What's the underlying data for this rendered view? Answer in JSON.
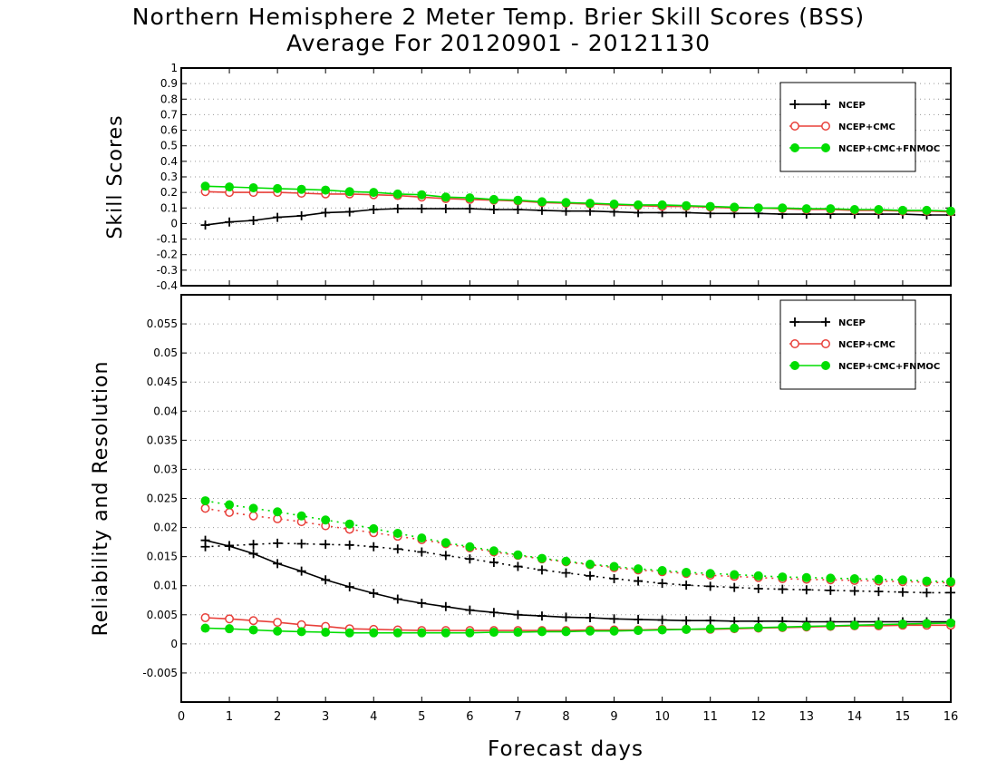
{
  "title": {
    "line1": "Northern Hemisphere 2 Meter Temp. Brier Skill Scores (BSS)",
    "line2": "Average For 20120901 - 20121130"
  },
  "xlabel": "Forecast days",
  "x_ticks": [
    "0",
    "1",
    "2",
    "3",
    "4",
    "5",
    "6",
    "7",
    "8",
    "9",
    "10",
    "11",
    "12",
    "13",
    "14",
    "15",
    "16"
  ],
  "colors": {
    "NCEP": "#000000",
    "NCEP+CMC": "#e8403a",
    "NCEP+CMC+FNMOC": "#00dd00"
  },
  "chart_data": [
    {
      "type": "line",
      "ylabel": "Skill Scores",
      "xlim": [
        0,
        16
      ],
      "ylim": [
        -0.4,
        1.0
      ],
      "y_ticks": [
        "-0.4",
        "-0.3",
        "-0.2",
        "-0.1",
        "0",
        "0.1",
        "0.2",
        "0.3",
        "0.4",
        "0.5",
        "0.6",
        "0.7",
        "0.8",
        "0.9",
        "1"
      ],
      "grid": true,
      "legend_position": "top-right",
      "x": [
        0.5,
        1,
        1.5,
        2,
        2.5,
        3,
        3.5,
        4,
        4.5,
        5,
        5.5,
        6,
        6.5,
        7,
        7.5,
        8,
        8.5,
        9,
        9.5,
        10,
        10.5,
        11,
        11.5,
        12,
        12.5,
        13,
        13.5,
        14,
        14.5,
        15,
        15.5,
        16
      ],
      "series": [
        {
          "name": "NCEP",
          "marker": "plus",
          "line": "solid",
          "values": [
            -0.01,
            0.01,
            0.02,
            0.04,
            0.05,
            0.07,
            0.075,
            0.09,
            0.095,
            0.095,
            0.095,
            0.095,
            0.09,
            0.09,
            0.085,
            0.08,
            0.08,
            0.075,
            0.07,
            0.07,
            0.07,
            0.065,
            0.065,
            0.065,
            0.06,
            0.06,
            0.06,
            0.06,
            0.06,
            0.06,
            0.055,
            0.055
          ]
        },
        {
          "name": "NCEP+CMC",
          "marker": "open-circle",
          "line": "solid",
          "values": [
            0.205,
            0.2,
            0.2,
            0.2,
            0.195,
            0.19,
            0.19,
            0.185,
            0.18,
            0.17,
            0.16,
            0.155,
            0.15,
            0.145,
            0.135,
            0.13,
            0.125,
            0.12,
            0.115,
            0.11,
            0.11,
            0.105,
            0.1,
            0.1,
            0.095,
            0.09,
            0.09,
            0.085,
            0.085,
            0.08,
            0.08,
            0.075
          ]
        },
        {
          "name": "NCEP+CMC+FNMOC",
          "marker": "filled-circle",
          "line": "solid",
          "values": [
            0.24,
            0.235,
            0.23,
            0.225,
            0.22,
            0.215,
            0.205,
            0.2,
            0.19,
            0.185,
            0.17,
            0.165,
            0.155,
            0.15,
            0.14,
            0.135,
            0.13,
            0.125,
            0.12,
            0.12,
            0.115,
            0.11,
            0.105,
            0.1,
            0.1,
            0.095,
            0.095,
            0.09,
            0.09,
            0.085,
            0.085,
            0.08
          ]
        }
      ]
    },
    {
      "type": "line",
      "ylabel": "Reliability and Resolution",
      "xlim": [
        0,
        16
      ],
      "ylim": [
        -0.01,
        0.06
      ],
      "y_ticks": [
        "-0.005",
        "0",
        "0.005",
        "0.01",
        "0.015",
        "0.02",
        "0.025",
        "0.03",
        "0.035",
        "0.04",
        "0.045",
        "0.05",
        "0.055"
      ],
      "grid": true,
      "legend_position": "top-right",
      "x": [
        0.5,
        1,
        1.5,
        2,
        2.5,
        3,
        3.5,
        4,
        4.5,
        5,
        5.5,
        6,
        6.5,
        7,
        7.5,
        8,
        8.5,
        9,
        9.5,
        10,
        10.5,
        11,
        11.5,
        12,
        12.5,
        13,
        13.5,
        14,
        14.5,
        15,
        15.5,
        16
      ],
      "series": [
        {
          "name": "NCEP",
          "metric": "resolution",
          "marker": "plus",
          "line": "dotted",
          "values": [
            0.0167,
            0.0169,
            0.0171,
            0.0173,
            0.0172,
            0.0171,
            0.017,
            0.0167,
            0.0163,
            0.0158,
            0.0152,
            0.0146,
            0.014,
            0.0133,
            0.0127,
            0.0122,
            0.0117,
            0.0112,
            0.0108,
            0.0104,
            0.0101,
            0.0099,
            0.0097,
            0.0095,
            0.0094,
            0.0093,
            0.0092,
            0.0091,
            0.009,
            0.0089,
            0.0088,
            0.0088
          ]
        },
        {
          "name": "NCEP",
          "metric": "reliability",
          "marker": "plus",
          "line": "solid",
          "values": [
            0.0178,
            0.0168,
            0.0155,
            0.0138,
            0.0125,
            0.011,
            0.0098,
            0.0087,
            0.0077,
            0.007,
            0.0064,
            0.0058,
            0.0054,
            0.005,
            0.0048,
            0.0046,
            0.0045,
            0.0043,
            0.0042,
            0.0041,
            0.004,
            0.004,
            0.0039,
            0.0039,
            0.0039,
            0.0038,
            0.0038,
            0.0038,
            0.0038,
            0.0038,
            0.0038,
            0.0038
          ]
        },
        {
          "name": "NCEP+CMC",
          "metric": "resolution",
          "marker": "open-circle",
          "line": "dotted",
          "values": [
            0.0233,
            0.0226,
            0.022,
            0.0215,
            0.021,
            0.0203,
            0.0197,
            0.0191,
            0.0185,
            0.0179,
            0.0172,
            0.0165,
            0.0158,
            0.0152,
            0.0146,
            0.0141,
            0.0136,
            0.0131,
            0.0127,
            0.0124,
            0.0121,
            0.0118,
            0.0116,
            0.0114,
            0.0112,
            0.0111,
            0.011,
            0.0109,
            0.0108,
            0.0107,
            0.0106,
            0.0105
          ]
        },
        {
          "name": "NCEP+CMC",
          "metric": "reliability",
          "marker": "open-circle",
          "line": "solid",
          "values": [
            0.0045,
            0.0043,
            0.004,
            0.0037,
            0.0033,
            0.003,
            0.0026,
            0.0025,
            0.0024,
            0.0023,
            0.0023,
            0.0023,
            0.0023,
            0.0023,
            0.0023,
            0.0023,
            0.0024,
            0.0024,
            0.0024,
            0.0025,
            0.0025,
            0.0025,
            0.0026,
            0.0027,
            0.0028,
            0.0029,
            0.003,
            0.0031,
            0.0031,
            0.0032,
            0.0032,
            0.0032
          ]
        },
        {
          "name": "NCEP+CMC+FNMOC",
          "metric": "resolution",
          "marker": "filled-circle",
          "line": "dotted",
          "values": [
            0.0246,
            0.0239,
            0.0233,
            0.0227,
            0.022,
            0.0213,
            0.0206,
            0.0198,
            0.019,
            0.0182,
            0.0174,
            0.0167,
            0.016,
            0.0153,
            0.0147,
            0.0142,
            0.0137,
            0.0133,
            0.0129,
            0.0126,
            0.0123,
            0.0121,
            0.0119,
            0.0117,
            0.0115,
            0.0114,
            0.0113,
            0.0112,
            0.0111,
            0.011,
            0.0108,
            0.0107
          ]
        },
        {
          "name": "NCEP+CMC+FNMOC",
          "metric": "reliability",
          "marker": "filled-circle",
          "line": "solid",
          "values": [
            0.0027,
            0.0026,
            0.0024,
            0.0022,
            0.0021,
            0.002,
            0.0019,
            0.0019,
            0.0019,
            0.0019,
            0.0019,
            0.0019,
            0.002,
            0.002,
            0.0021,
            0.0021,
            0.0022,
            0.0022,
            0.0023,
            0.0024,
            0.0025,
            0.0026,
            0.0027,
            0.0028,
            0.0029,
            0.003,
            0.0031,
            0.0032,
            0.0033,
            0.0034,
            0.0035,
            0.0036
          ]
        }
      ]
    }
  ]
}
